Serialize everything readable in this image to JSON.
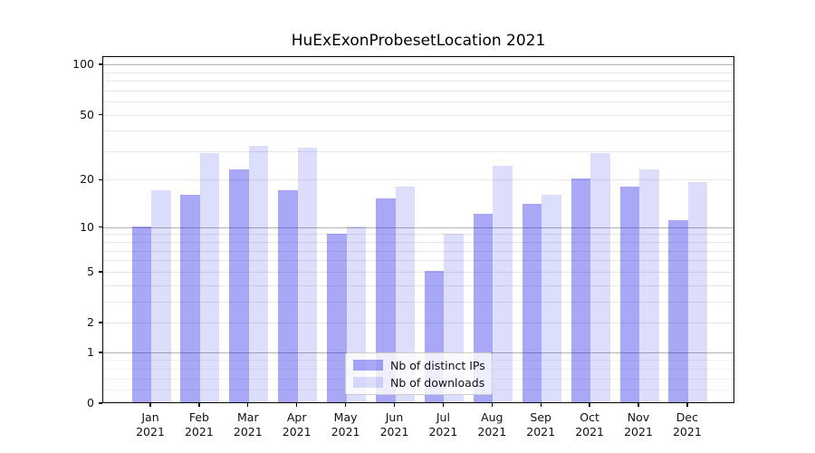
{
  "chart_data": {
    "type": "bar",
    "title": "HuExExonProbesetLocation 2021",
    "year_label": "2021",
    "categories": [
      "Jan",
      "Feb",
      "Mar",
      "Apr",
      "May",
      "Jun",
      "Jul",
      "Aug",
      "Sep",
      "Oct",
      "Nov",
      "Dec"
    ],
    "series": [
      {
        "name": "Nb of distinct IPs",
        "fill": "rgba(0,0,230,0.34)",
        "hex": "#a9a9f7",
        "values": [
          10,
          16,
          23,
          17,
          9,
          15,
          5,
          12,
          14,
          20,
          18,
          11
        ]
      },
      {
        "name": "Nb of downloads",
        "fill": "rgba(0,0,230,0.135)",
        "hex": "#dbdbfa",
        "values": [
          17,
          29,
          32,
          31,
          10,
          18,
          9,
          24,
          16,
          29,
          23,
          19
        ]
      }
    ],
    "xlabel": "",
    "ylabel": "",
    "yscale": "log1p",
    "ylim": [
      0,
      112
    ],
    "ytick_labels": [
      100,
      50,
      20,
      10,
      5,
      2,
      1,
      0
    ],
    "ytick_major": [
      1,
      10,
      100
    ],
    "ytick_labeled_minor": [
      2,
      5,
      20,
      50
    ],
    "ytick_unlabeled_minor": [
      0.2,
      0.4,
      0.6,
      0.8,
      3,
      4,
      6,
      7,
      8,
      9,
      30,
      40,
      60,
      70,
      80,
      90
    ],
    "grid": "horizontal",
    "legend_position": "lower center",
    "colors": {
      "grid_major": "#b3b3b3",
      "grid_minor": "#e7e7e7",
      "grid_subminor": "#f3f3f3",
      "axis": "#000000",
      "text": "#111111"
    }
  }
}
